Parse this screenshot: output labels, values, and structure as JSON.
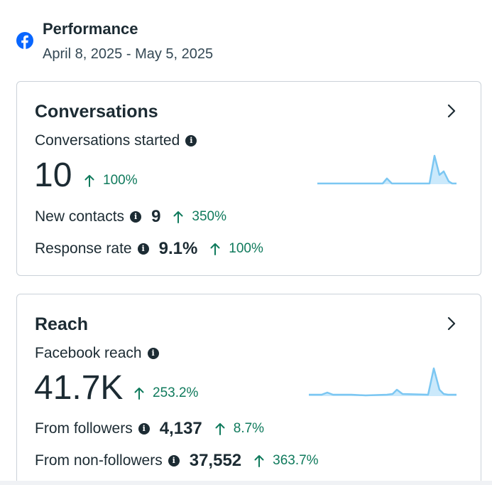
{
  "header": {
    "title": "Performance",
    "date_range": "April 8, 2025 - May 5, 2025",
    "icon": "facebook-icon"
  },
  "conversations": {
    "title": "Conversations",
    "metric_label": "Conversations started",
    "metric_value": "10",
    "metric_change": "100%",
    "rows": [
      {
        "label": "New contacts",
        "value": "9",
        "change": "350%"
      },
      {
        "label": "Response rate",
        "value": "9.1%",
        "change": "100%"
      }
    ]
  },
  "reach": {
    "title": "Reach",
    "metric_label": "Facebook reach",
    "metric_value": "41.7K",
    "metric_change": "253.2%",
    "rows": [
      {
        "label": "From followers",
        "value": "4,137",
        "change": "8.7%"
      },
      {
        "label": "From non-followers",
        "value": "37,552",
        "change": "363.7%"
      }
    ]
  },
  "colors": {
    "positive": "#0f7a5c",
    "spark_line": "#7cc7f2",
    "spark_fill": "#cbe9fb",
    "facebook_blue": "#0866ff"
  },
  "icons": [
    "facebook-icon",
    "chevron-right-icon",
    "info-icon",
    "arrow-up-icon"
  ]
}
